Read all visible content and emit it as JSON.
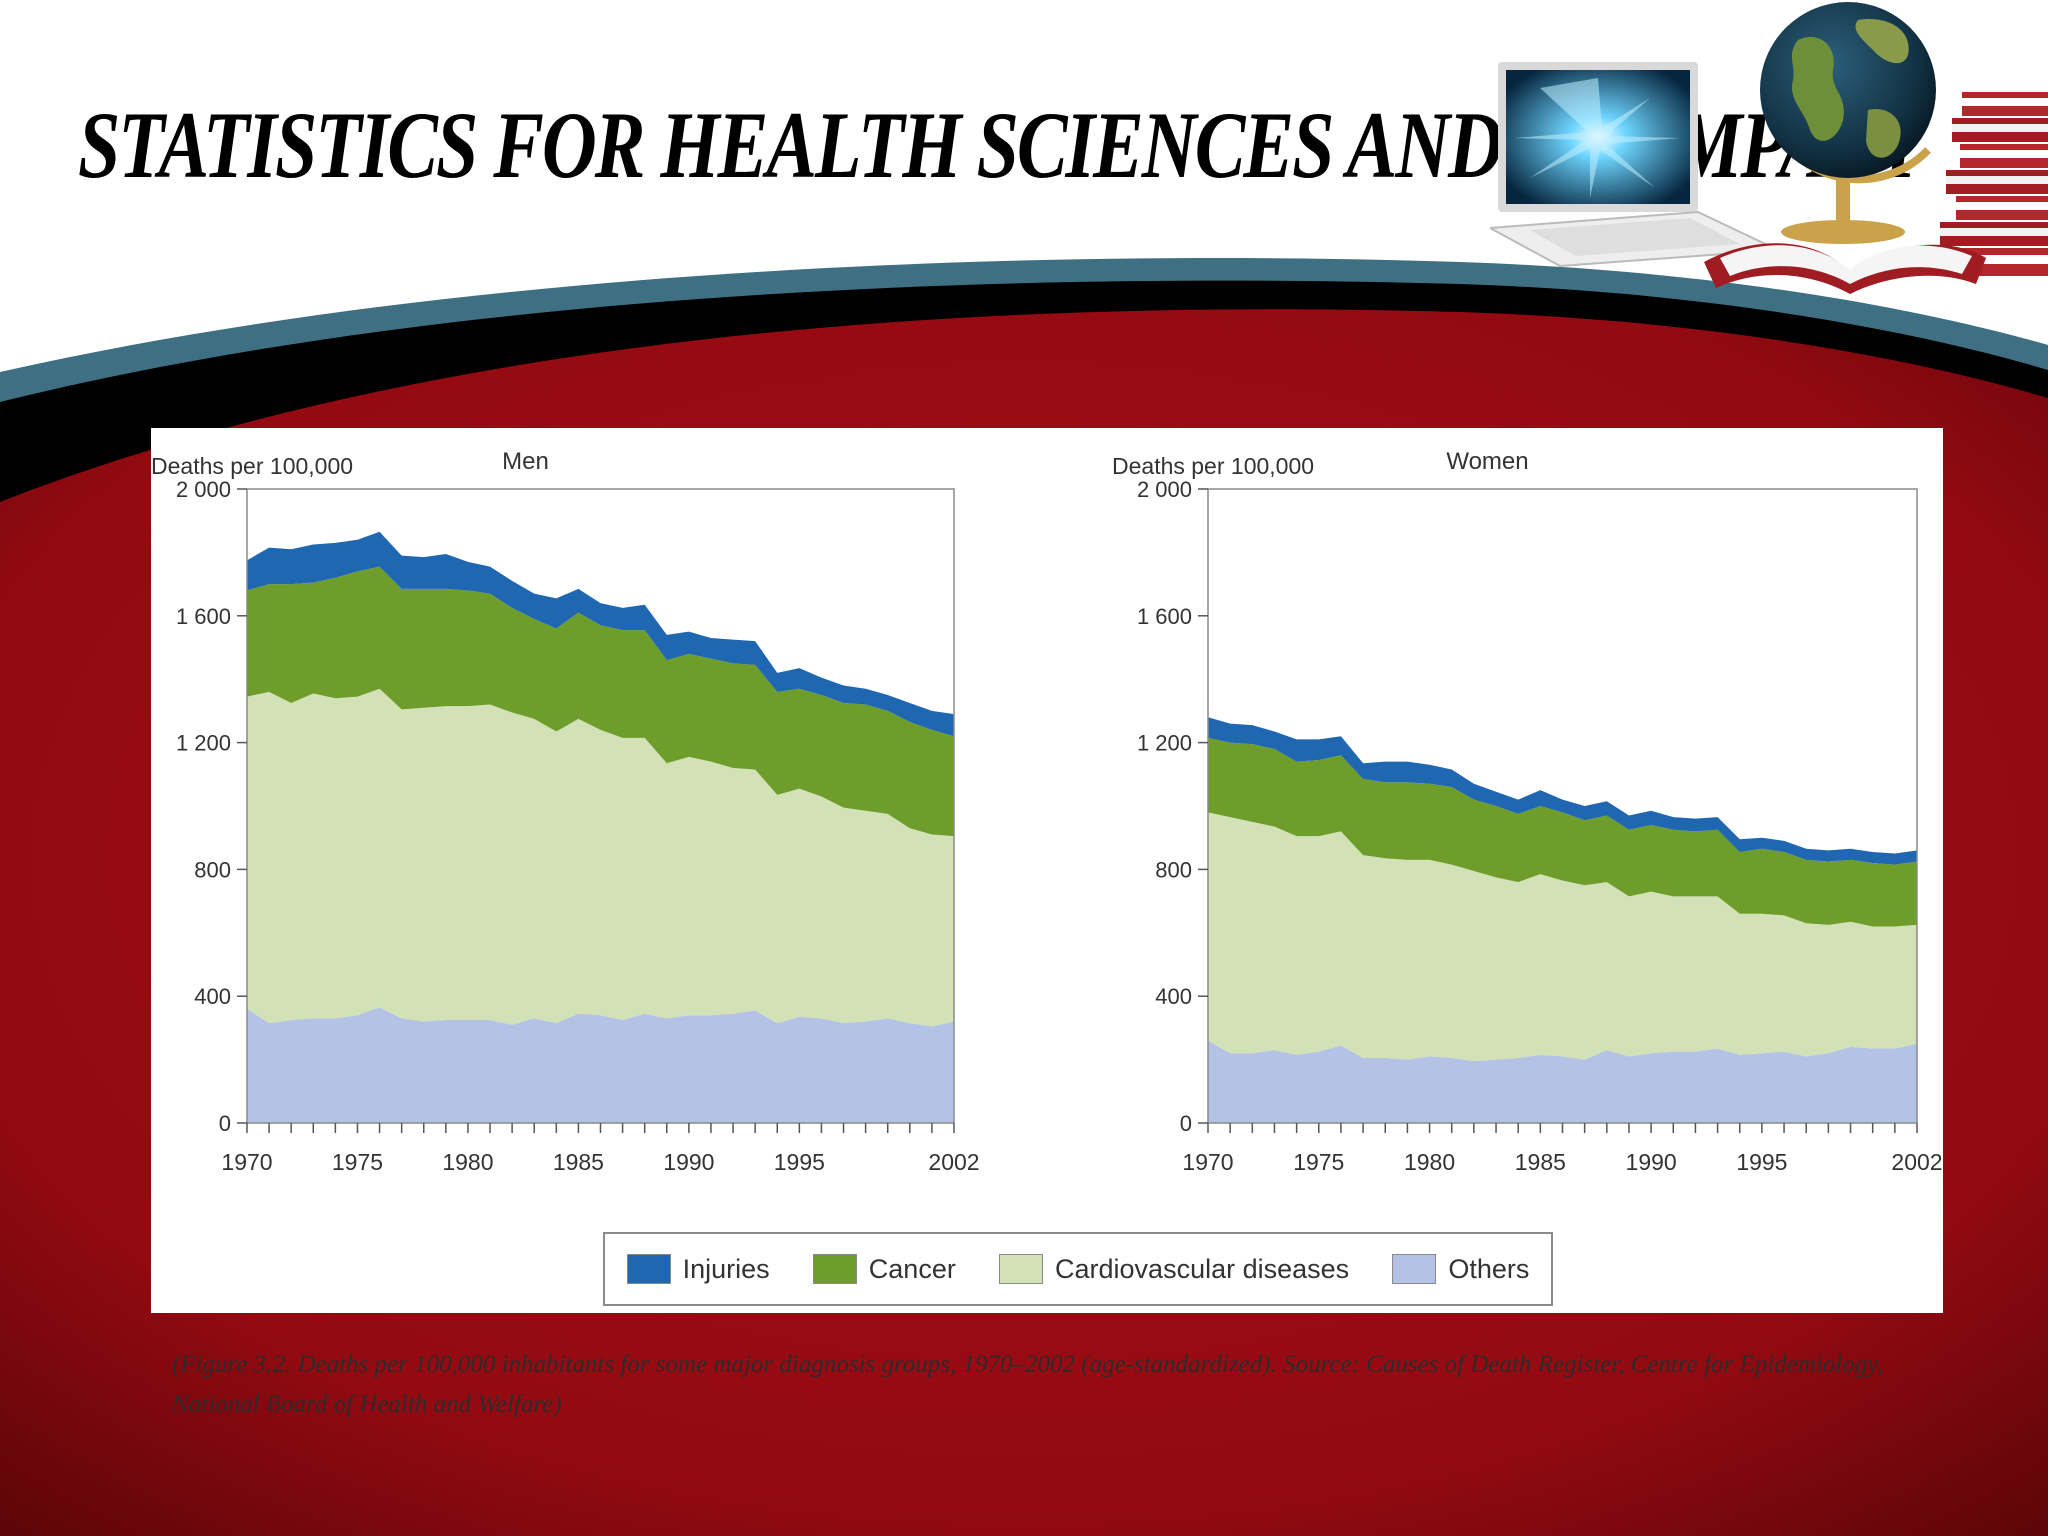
{
  "slide": {
    "title": "STATISTICS FOR HEALTH SCIENCES AND ITS IMPACT",
    "caption": "(Figure 3.2. Deaths per 100,000 inhabitants for some major diagnosis groups, 1970–2002 (age-standardized). Source: Causes of Death Register, Centre for Epidemiology, National Board of Health and Welfare)",
    "colors": {
      "background_red": "#9b0a10",
      "band_teal": "#3e6f82",
      "band_black": "#000000"
    },
    "decorations": [
      "laptop-icon",
      "globe-icon",
      "books-icon",
      "open-book-icon"
    ]
  },
  "chart_data": [
    {
      "type": "area",
      "stacked": true,
      "panel": "men",
      "title": "Men",
      "ylabel": "Deaths per 100,000",
      "xlabel": "",
      "ylim": [
        0,
        2000
      ],
      "xlim": [
        1970,
        2002
      ],
      "y_ticks": [
        0,
        400,
        800,
        1200,
        1600,
        2000
      ],
      "y_tick_labels": [
        "0",
        "400",
        "800",
        "1 200",
        "1 600",
        "2 000"
      ],
      "x_tick_labels": [
        "1970",
        "1975",
        "1980",
        "1985",
        "1990",
        "1995",
        "2002"
      ],
      "x": [
        1970,
        1971,
        1972,
        1973,
        1974,
        1975,
        1976,
        1977,
        1978,
        1979,
        1980,
        1981,
        1982,
        1983,
        1984,
        1985,
        1986,
        1987,
        1988,
        1989,
        1990,
        1991,
        1992,
        1993,
        1994,
        1995,
        1996,
        1997,
        1998,
        1999,
        2000,
        2001,
        2002
      ],
      "series": [
        {
          "name": "Others",
          "color": "#b4c2e6",
          "values": [
            360,
            315,
            325,
            330,
            330,
            340,
            365,
            330,
            320,
            325,
            325,
            325,
            310,
            330,
            315,
            345,
            340,
            325,
            345,
            330,
            340,
            340,
            345,
            355,
            315,
            335,
            330,
            315,
            320,
            330,
            315,
            305,
            320
          ]
        },
        {
          "name": "Cardiovascular diseases",
          "color": "#d3e1b7",
          "values": [
            985,
            1045,
            1000,
            1025,
            1010,
            1005,
            1005,
            975,
            990,
            990,
            990,
            995,
            985,
            945,
            920,
            930,
            900,
            890,
            870,
            805,
            815,
            800,
            775,
            760,
            720,
            720,
            700,
            680,
            665,
            645,
            615,
            605,
            585
          ]
        },
        {
          "name": "Cancer",
          "color": "#6e9d2c",
          "values": [
            335,
            340,
            375,
            350,
            380,
            395,
            385,
            380,
            375,
            370,
            365,
            350,
            330,
            315,
            325,
            335,
            330,
            340,
            340,
            325,
            325,
            325,
            330,
            330,
            325,
            315,
            320,
            330,
            335,
            325,
            335,
            330,
            315
          ]
        },
        {
          "name": "Injuries",
          "color": "#1f67b1",
          "values": [
            95,
            115,
            110,
            120,
            110,
            100,
            110,
            105,
            100,
            110,
            90,
            85,
            85,
            80,
            95,
            75,
            70,
            70,
            80,
            80,
            70,
            65,
            75,
            75,
            60,
            65,
            55,
            55,
            50,
            50,
            60,
            60,
            70
          ]
        }
      ]
    },
    {
      "type": "area",
      "stacked": true,
      "panel": "women",
      "title": "Women",
      "ylabel": "Deaths per 100,000",
      "xlabel": "",
      "ylim": [
        0,
        2000
      ],
      "xlim": [
        1970,
        2002
      ],
      "y_ticks": [
        0,
        400,
        800,
        1200,
        1600,
        2000
      ],
      "y_tick_labels": [
        "0",
        "400",
        "800",
        "1 200",
        "1 600",
        "2 000"
      ],
      "x_tick_labels": [
        "1970",
        "1975",
        "1980",
        "1985",
        "1990",
        "1995",
        "2002"
      ],
      "x": [
        1970,
        1971,
        1972,
        1973,
        1974,
        1975,
        1976,
        1977,
        1978,
        1979,
        1980,
        1981,
        1982,
        1983,
        1984,
        1985,
        1986,
        1987,
        1988,
        1989,
        1990,
        1991,
        1992,
        1993,
        1994,
        1995,
        1996,
        1997,
        1998,
        1999,
        2000,
        2001,
        2002
      ],
      "series": [
        {
          "name": "Others",
          "color": "#b4c2e6",
          "values": [
            260,
            220,
            220,
            230,
            215,
            225,
            245,
            205,
            205,
            200,
            210,
            205,
            195,
            200,
            205,
            215,
            210,
            200,
            230,
            210,
            220,
            225,
            225,
            235,
            215,
            220,
            225,
            210,
            220,
            240,
            235,
            235,
            250
          ]
        },
        {
          "name": "Cardiovascular diseases",
          "color": "#d3e1b7",
          "values": [
            720,
            745,
            730,
            705,
            690,
            680,
            675,
            640,
            630,
            630,
            620,
            610,
            600,
            575,
            555,
            570,
            555,
            550,
            530,
            505,
            510,
            490,
            490,
            480,
            445,
            440,
            430,
            420,
            405,
            395,
            385,
            385,
            375
          ]
        },
        {
          "name": "Cancer",
          "color": "#6e9d2c",
          "values": [
            235,
            235,
            245,
            245,
            235,
            240,
            240,
            240,
            240,
            245,
            240,
            245,
            225,
            225,
            215,
            215,
            215,
            205,
            210,
            210,
            210,
            210,
            205,
            210,
            195,
            205,
            200,
            200,
            200,
            195,
            200,
            195,
            200
          ]
        },
        {
          "name": "Injuries",
          "color": "#1f67b1",
          "values": [
            65,
            60,
            60,
            55,
            70,
            65,
            60,
            50,
            65,
            65,
            60,
            55,
            50,
            45,
            45,
            50,
            40,
            45,
            45,
            45,
            45,
            40,
            40,
            40,
            40,
            35,
            35,
            35,
            35,
            35,
            35,
            35,
            35
          ]
        }
      ]
    }
  ],
  "legend": [
    {
      "label": "Injuries",
      "color": "#1f67b1"
    },
    {
      "label": "Cancer",
      "color": "#6e9d2c"
    },
    {
      "label": "Cardiovascular diseases",
      "color": "#d3e1b7"
    },
    {
      "label": "Others",
      "color": "#b4c2e6"
    }
  ]
}
